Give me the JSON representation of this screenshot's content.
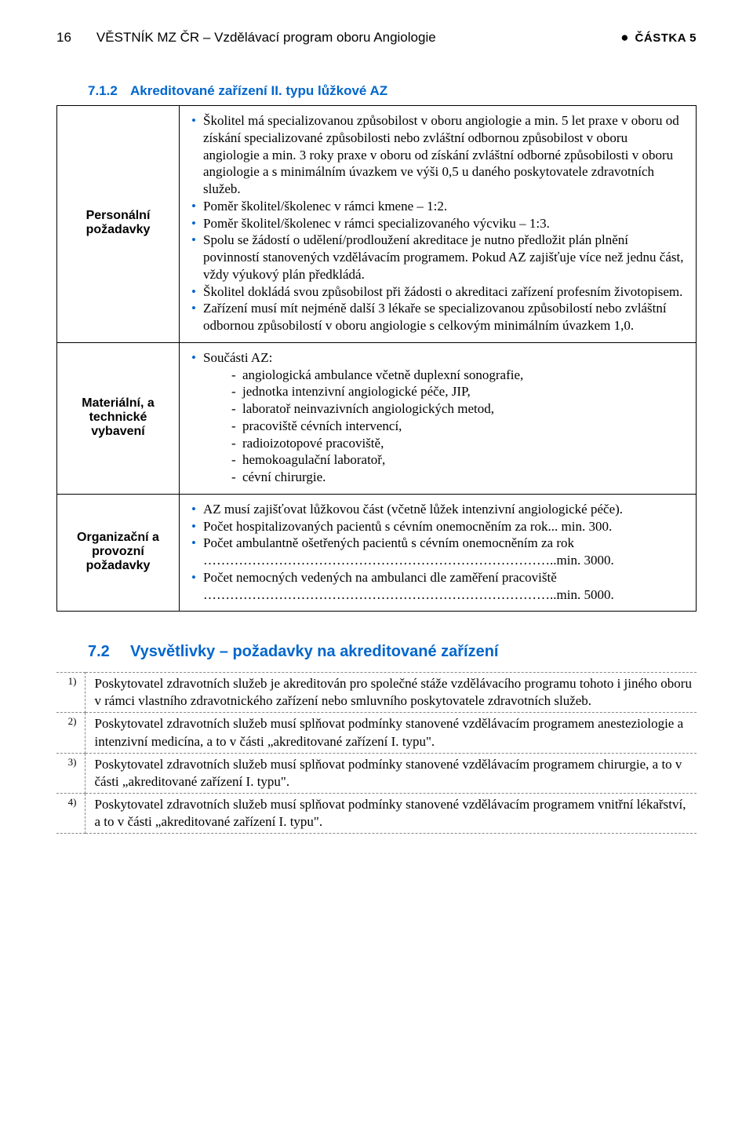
{
  "header": {
    "page": "16",
    "title": "VĚSTNÍK MZ ČR – Vzdělávací program oboru Angiologie",
    "part": "ČÁSTKA 5"
  },
  "section71": {
    "number": "7.1.2",
    "title": "Akreditované zařízení II. typu lůžkové AZ"
  },
  "rows": {
    "personal_label": "Personální požadavky",
    "material_label": "Materiální, a technické vybavení",
    "org_label": "Organizační a provozní požadavky",
    "p1": "Školitel má specializovanou způsobilost v oboru angiologie a min. 5 let praxe v oboru od získání specializované způsobilosti nebo zvláštní odbornou způsobilost v oboru angiologie a min. 3 roky praxe v oboru od získání zvláštní odborné způsobilosti v oboru angiologie a s minimálním úvazkem ve výši 0,5 u daného poskytovatele zdravotních služeb.",
    "p2": "Poměr školitel/školenec v rámci kmene – 1:2.",
    "p3": "Poměr školitel/školenec v rámci specializovaného výcviku – 1:3.",
    "p4": "Spolu se žádostí o udělení/prodloužení akreditace je nutno předložit plán plnění povinností stanovených vzdělávacím programem. Pokud AZ zajišťuje více než jednu část, vždy výukový plán předkládá.",
    "p5": "Školitel dokládá svou způsobilost při žádosti o akreditaci zařízení profesním životopisem.",
    "p6": "Zařízení musí mít nejméně další 3 lékaře se specializovanou způsobilostí nebo zvláštní odbornou způsobilostí v oboru angiologie s celkovým minimálním úvazkem 1,0.",
    "m_intro": "Součásti AZ:",
    "m1": "angiologická ambulance včetně duplexní sonografie,",
    "m2": "jednotka intenzivní angiologické péče, JIP,",
    "m3": "laboratoř neinvazivních angiologických metod,",
    "m4": "pracoviště cévních intervencí,",
    "m5": "radioizotopové pracoviště,",
    "m6": "hemokoagulační laboratoř,",
    "m7": "cévní chirurgie.",
    "o1": "AZ musí zajišťovat lůžkovou část (včetně lůžek intenzivní angiologické péče).",
    "o2": "Počet hospitalizovaných pacientů s cévním onemocněním za rok... min. 300.",
    "o3": "Počet ambulantně ošetřených pacientů s cévním onemocněním za rok ……………………………………………………………………..min. 3000.",
    "o4": "Počet nemocných vedených na ambulanci dle zaměření pracoviště ……………………………………………………………………..min. 5000."
  },
  "section72": {
    "number": "7.2",
    "title": "Vysvětlivky – požadavky na akreditované zařízení"
  },
  "notes": {
    "n1": "1)",
    "t1": "Poskytovatel zdravotních služeb je akreditován pro společné stáže vzdělávacího programu tohoto i jiného oboru v rámci vlastního zdravotnického zařízení nebo smluvního poskytovatele zdravotních služeb.",
    "n2": "2)",
    "t2": "Poskytovatel zdravotních služeb musí splňovat podmínky stanovené vzdělávacím programem anesteziologie a intenzivní medicína, a to v části „akreditované zařízení I. typu\".",
    "n3": "3)",
    "t3": "Poskytovatel zdravotních služeb musí splňovat podmínky stanovené vzdělávacím programem chirurgie, a to v části „akreditované zařízení I. typu\".",
    "n4": "4)",
    "t4": "Poskytovatel zdravotních služeb musí splňovat podmínky stanovené vzdělávacím programem vnitřní lékařství, a to v části „akreditované zařízení I. typu\"."
  }
}
